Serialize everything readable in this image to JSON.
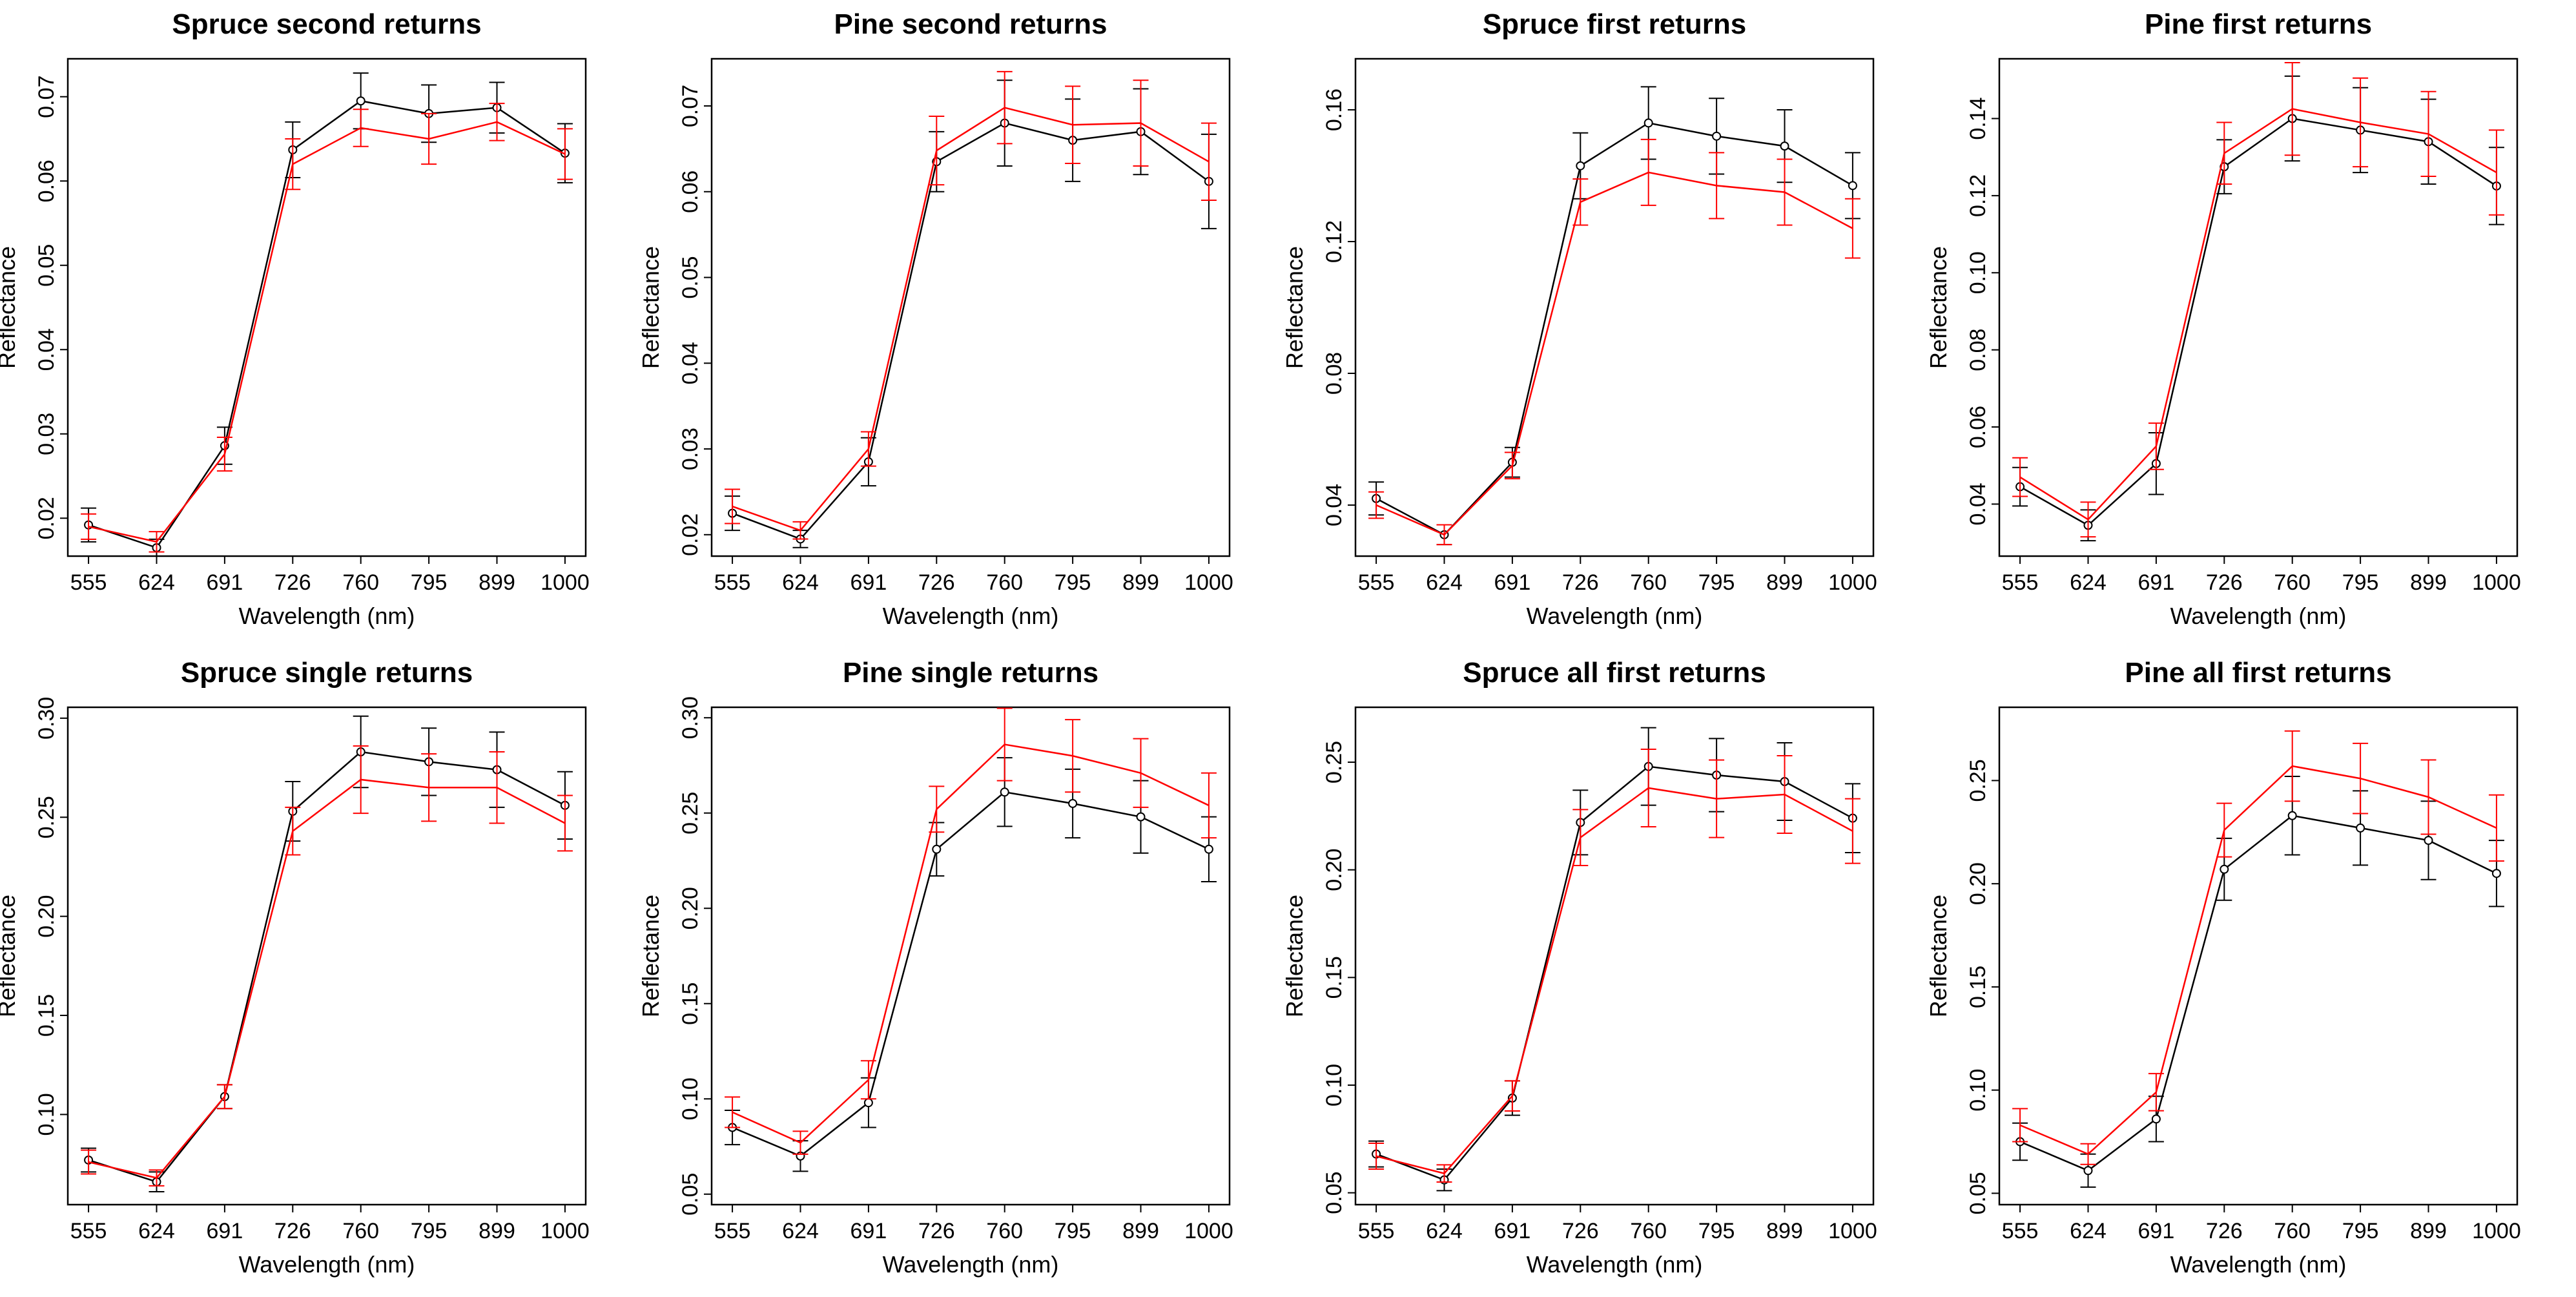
{
  "chart_data": [
    {
      "type": "line",
      "title": "Spruce second returns",
      "xlabel": "Wavelength (nm)",
      "ylabel": "Reflectance",
      "categories": [
        "555",
        "624",
        "691",
        "726",
        "760",
        "795",
        "899",
        "1000"
      ],
      "ylim": [
        0.0155,
        0.0745
      ],
      "yticks": [
        "0.02",
        "0.03",
        "0.04",
        "0.05",
        "0.06",
        "0.07"
      ],
      "series": [
        {
          "color": "#000000",
          "values": [
            0.0192,
            0.0165,
            0.0286,
            0.0637,
            0.0695,
            0.068,
            0.0687,
            0.0633
          ],
          "errors": [
            0.002,
            0.001,
            0.0022,
            0.0033,
            0.0033,
            0.0034,
            0.003,
            0.0035
          ]
        },
        {
          "color": "#ff0000",
          "values": [
            0.019,
            0.0172,
            0.0276,
            0.062,
            0.0663,
            0.065,
            0.067,
            0.0632
          ],
          "errors": [
            0.0015,
            0.0012,
            0.002,
            0.003,
            0.0022,
            0.003,
            0.0022,
            0.003
          ]
        }
      ]
    },
    {
      "type": "line",
      "title": "Pine second returns",
      "xlabel": "Wavelength (nm)",
      "ylabel": "Reflectance",
      "categories": [
        "555",
        "624",
        "691",
        "726",
        "760",
        "795",
        "899",
        "1000"
      ],
      "ylim": [
        0.0175,
        0.0755
      ],
      "yticks": [
        "0.02",
        "0.03",
        "0.04",
        "0.05",
        "0.06",
        "0.07"
      ],
      "series": [
        {
          "color": "#000000",
          "values": [
            0.0225,
            0.0195,
            0.0285,
            0.0635,
            0.068,
            0.066,
            0.067,
            0.0612
          ],
          "errors": [
            0.002,
            0.001,
            0.0028,
            0.0035,
            0.005,
            0.0048,
            0.005,
            0.0055
          ]
        },
        {
          "color": "#ff0000",
          "values": [
            0.0233,
            0.0205,
            0.03,
            0.0648,
            0.0698,
            0.0678,
            0.068,
            0.0635
          ],
          "errors": [
            0.002,
            0.001,
            0.002,
            0.004,
            0.0042,
            0.0045,
            0.005,
            0.0045
          ]
        }
      ]
    },
    {
      "type": "line",
      "title": "Spruce first returns",
      "xlabel": "Wavelength (nm)",
      "ylabel": "Reflectance",
      "categories": [
        "555",
        "624",
        "691",
        "726",
        "760",
        "795",
        "899",
        "1000"
      ],
      "ylim": [
        0.0245,
        0.1755
      ],
      "yticks": [
        "0.04",
        "0.08",
        "0.12",
        "0.16"
      ],
      "series": [
        {
          "color": "#000000",
          "values": [
            0.042,
            0.031,
            0.053,
            0.143,
            0.156,
            0.152,
            0.149,
            0.137
          ],
          "errors": [
            0.005,
            0.003,
            0.0045,
            0.01,
            0.011,
            0.0115,
            0.011,
            0.01
          ]
        },
        {
          "color": "#ff0000",
          "values": [
            0.04,
            0.031,
            0.052,
            0.132,
            0.141,
            0.137,
            0.135,
            0.124
          ],
          "errors": [
            0.004,
            0.003,
            0.004,
            0.007,
            0.01,
            0.01,
            0.01,
            0.009
          ]
        }
      ]
    },
    {
      "type": "line",
      "title": "Pine first returns",
      "xlabel": "Wavelength (nm)",
      "ylabel": "Reflectance",
      "categories": [
        "555",
        "624",
        "691",
        "726",
        "760",
        "795",
        "899",
        "1000"
      ],
      "ylim": [
        0.0265,
        0.1555
      ],
      "yticks": [
        "0.04",
        "0.06",
        "0.08",
        "0.10",
        "0.12",
        "0.14"
      ],
      "series": [
        {
          "color": "#000000",
          "values": [
            0.0445,
            0.0345,
            0.0505,
            0.1275,
            0.14,
            0.137,
            0.134,
            0.1225
          ],
          "errors": [
            0.005,
            0.004,
            0.008,
            0.007,
            0.011,
            0.011,
            0.011,
            0.01
          ]
        },
        {
          "color": "#ff0000",
          "values": [
            0.047,
            0.036,
            0.055,
            0.131,
            0.1425,
            0.139,
            0.136,
            0.126
          ],
          "errors": [
            0.005,
            0.0045,
            0.006,
            0.008,
            0.012,
            0.0115,
            0.011,
            0.011
          ]
        }
      ]
    },
    {
      "type": "line",
      "title": "Spruce single returns",
      "xlabel": "Wavelength (nm)",
      "ylabel": "Reflectance",
      "categories": [
        "555",
        "624",
        "691",
        "726",
        "760",
        "795",
        "899",
        "1000"
      ],
      "ylim": [
        0.0545,
        0.3055
      ],
      "yticks": [
        "0.10",
        "0.15",
        "0.20",
        "0.25",
        "0.30"
      ],
      "series": [
        {
          "color": "#000000",
          "values": [
            0.077,
            0.066,
            0.109,
            0.253,
            0.283,
            0.278,
            0.274,
            0.256
          ],
          "errors": [
            0.006,
            0.005,
            0.006,
            0.015,
            0.018,
            0.017,
            0.019,
            0.017
          ]
        },
        {
          "color": "#ff0000",
          "values": [
            0.076,
            0.068,
            0.109,
            0.243,
            0.269,
            0.265,
            0.265,
            0.247
          ],
          "errors": [
            0.006,
            0.004,
            0.006,
            0.012,
            0.017,
            0.017,
            0.018,
            0.014
          ]
        }
      ]
    },
    {
      "type": "line",
      "title": "Pine single returns",
      "xlabel": "Wavelength (nm)",
      "ylabel": "Reflectance",
      "categories": [
        "555",
        "624",
        "691",
        "726",
        "760",
        "795",
        "899",
        "1000"
      ],
      "ylim": [
        0.0445,
        0.3055
      ],
      "yticks": [
        "0.05",
        "0.10",
        "0.15",
        "0.20",
        "0.25",
        "0.30"
      ],
      "series": [
        {
          "color": "#000000",
          "values": [
            0.085,
            0.07,
            0.098,
            0.231,
            0.261,
            0.255,
            0.248,
            0.231
          ],
          "errors": [
            0.009,
            0.008,
            0.013,
            0.014,
            0.018,
            0.018,
            0.019,
            0.017
          ]
        },
        {
          "color": "#ff0000",
          "values": [
            0.093,
            0.077,
            0.11,
            0.252,
            0.286,
            0.28,
            0.271,
            0.254
          ],
          "errors": [
            0.008,
            0.006,
            0.01,
            0.012,
            0.019,
            0.019,
            0.018,
            0.017
          ]
        }
      ]
    },
    {
      "type": "line",
      "title": "Spruce all first returns",
      "xlabel": "Wavelength (nm)",
      "ylabel": "Reflectance",
      "categories": [
        "555",
        "624",
        "691",
        "726",
        "760",
        "795",
        "899",
        "1000"
      ],
      "ylim": [
        0.0445,
        0.2755
      ],
      "yticks": [
        "0.05",
        "0.10",
        "0.15",
        "0.20",
        "0.25"
      ],
      "series": [
        {
          "color": "#000000",
          "values": [
            0.068,
            0.056,
            0.094,
            0.222,
            0.248,
            0.244,
            0.241,
            0.224
          ],
          "errors": [
            0.006,
            0.005,
            0.008,
            0.015,
            0.018,
            0.017,
            0.018,
            0.016
          ]
        },
        {
          "color": "#ff0000",
          "values": [
            0.067,
            0.059,
            0.095,
            0.215,
            0.238,
            0.233,
            0.235,
            0.218
          ],
          "errors": [
            0.006,
            0.004,
            0.007,
            0.013,
            0.018,
            0.018,
            0.018,
            0.015
          ]
        }
      ]
    },
    {
      "type": "line",
      "title": "Pine all first returns",
      "xlabel": "Wavelength (nm)",
      "ylabel": "Reflectance",
      "categories": [
        "555",
        "624",
        "691",
        "726",
        "760",
        "795",
        "899",
        "1000"
      ],
      "ylim": [
        0.0445,
        0.2855
      ],
      "yticks": [
        "0.05",
        "0.10",
        "0.15",
        "0.20",
        "0.25"
      ],
      "series": [
        {
          "color": "#000000",
          "values": [
            0.075,
            0.061,
            0.086,
            0.207,
            0.233,
            0.227,
            0.221,
            0.205
          ],
          "errors": [
            0.009,
            0.008,
            0.011,
            0.015,
            0.019,
            0.018,
            0.019,
            0.016
          ]
        },
        {
          "color": "#ff0000",
          "values": [
            0.083,
            0.069,
            0.099,
            0.226,
            0.257,
            0.251,
            0.242,
            0.227
          ],
          "errors": [
            0.008,
            0.005,
            0.009,
            0.013,
            0.017,
            0.017,
            0.018,
            0.016
          ]
        }
      ]
    }
  ]
}
